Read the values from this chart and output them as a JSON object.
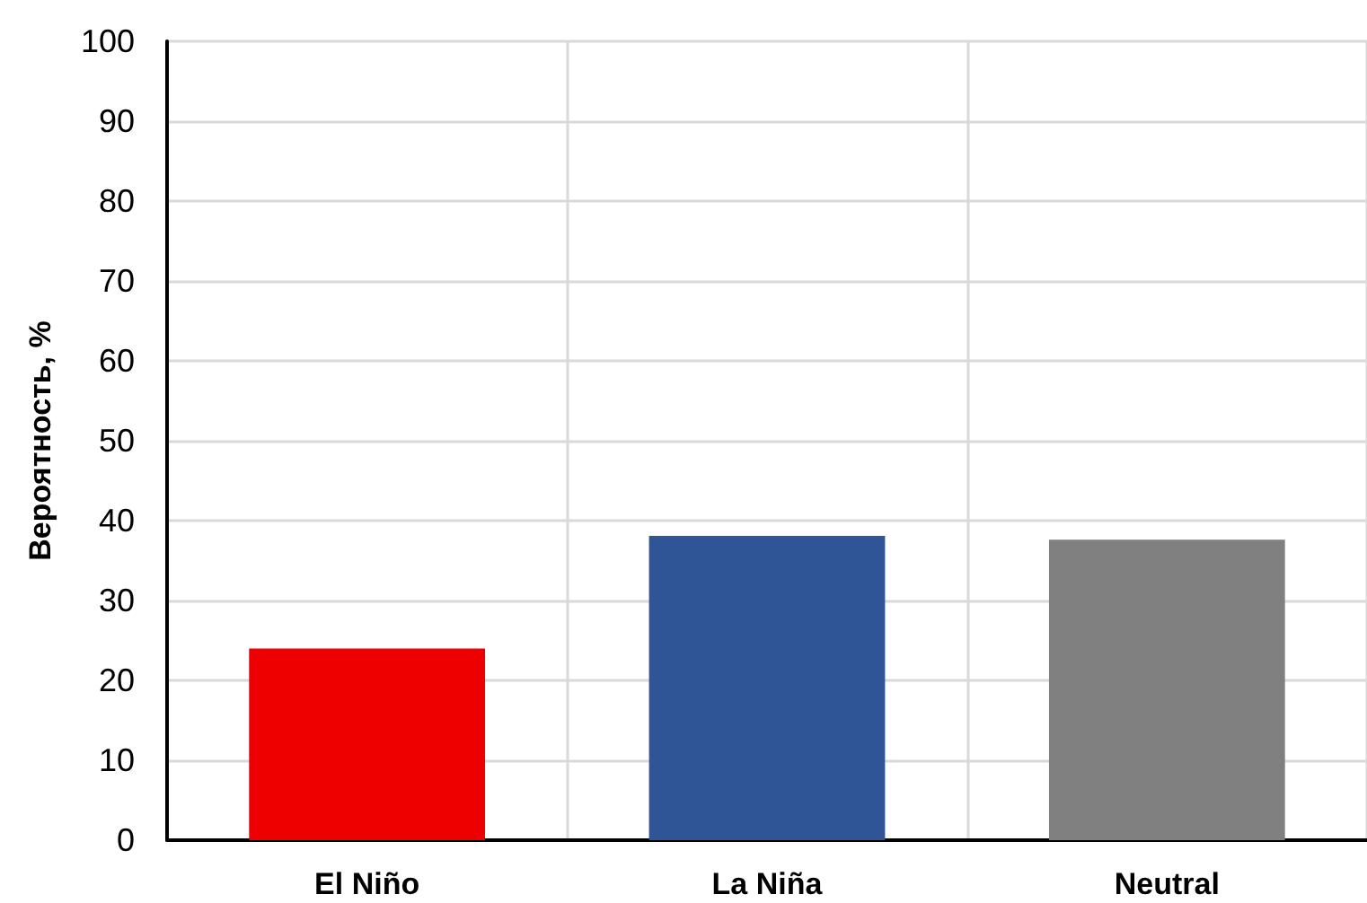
{
  "chart_data": {
    "type": "bar",
    "ylabel": "Вероятность, %",
    "categories": [
      "El Niño",
      "La Niña",
      "Neutral"
    ],
    "values": [
      24,
      38.1,
      37.6
    ],
    "colors": [
      "#ee0000",
      "#2f5597",
      "#808080"
    ],
    "ylim": [
      0,
      100
    ],
    "yticks": [
      0,
      10,
      20,
      30,
      40,
      50,
      60,
      70,
      80,
      90,
      100
    ],
    "grid": true
  }
}
